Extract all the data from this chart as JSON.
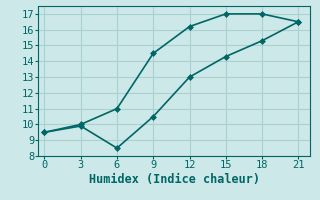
{
  "xlabel": "Humidex (Indice chaleur)",
  "bg_color": "#cce8e8",
  "grid_color": "#aad0d0",
  "line_color": "#006666",
  "upper_x": [
    0,
    3,
    6,
    9,
    12,
    15,
    18,
    21
  ],
  "upper_y": [
    9.5,
    10.0,
    11.0,
    14.5,
    16.2,
    17.0,
    17.0,
    16.5
  ],
  "lower_x": [
    0,
    3,
    6,
    9,
    12,
    15,
    18,
    21
  ],
  "lower_y": [
    9.5,
    9.9,
    8.5,
    10.5,
    13.0,
    14.3,
    15.3,
    16.5
  ],
  "xlim": [
    -0.5,
    22
  ],
  "ylim": [
    8,
    17.5
  ],
  "xticks": [
    0,
    3,
    6,
    9,
    12,
    15,
    18,
    21
  ],
  "yticks": [
    8,
    9,
    10,
    11,
    12,
    13,
    14,
    15,
    16,
    17
  ],
  "tick_fontsize": 7.5,
  "label_fontsize": 8.5,
  "marker_size": 3.0,
  "line_width": 1.2
}
